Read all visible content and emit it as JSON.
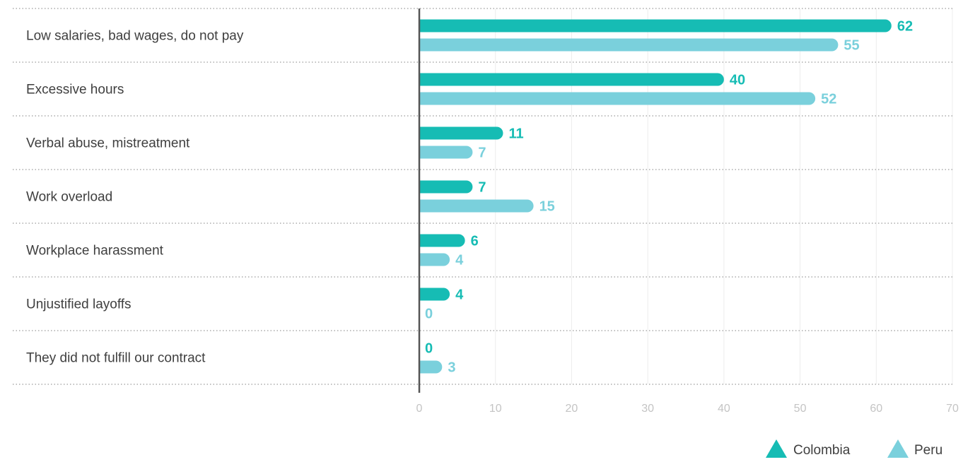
{
  "chart_data": {
    "type": "bar",
    "orientation": "horizontal",
    "categories": [
      "Low salaries, bad wages, do not pay",
      "Excessive hours",
      "Verbal abuse, mistreatment",
      "Work overload",
      "Workplace harassment",
      "Unjustified layoffs",
      "They did not fulfill our contract"
    ],
    "series": [
      {
        "name": "Colombia",
        "color": "#16bcb4",
        "values": [
          62,
          40,
          11,
          7,
          6,
          4,
          0
        ]
      },
      {
        "name": "Peru",
        "color": "#7ad0dc",
        "values": [
          55,
          52,
          7,
          15,
          4,
          0,
          3
        ]
      }
    ],
    "xlim": [
      0,
      70
    ],
    "xticks": [
      0,
      10,
      20,
      30,
      40,
      50,
      60,
      70
    ],
    "grid": "vertical",
    "legend_position": "bottom-right",
    "title": "",
    "xlabel": "",
    "ylabel": ""
  }
}
